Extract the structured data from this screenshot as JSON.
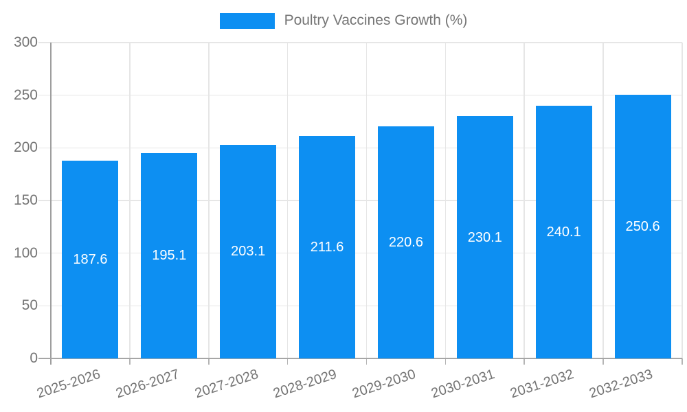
{
  "chart_data": {
    "type": "bar",
    "title": "",
    "xlabel": "",
    "ylabel": "",
    "legend": {
      "label": "Poultry Vaccines Growth (%)",
      "position": "top"
    },
    "categories": [
      "2025-2026",
      "2026-2027",
      "2027-2028",
      "2028-2029",
      "2029-2030",
      "2030-2031",
      "2031-2032",
      "2032-2033"
    ],
    "values": [
      187.6,
      195.1,
      203.1,
      211.6,
      220.6,
      230.1,
      240.1,
      250.6
    ],
    "value_decimals": 1,
    "value_label_position": "inside-center",
    "ylim": [
      0,
      300
    ],
    "ytick_interval": 50,
    "ytick_labels": [
      "0",
      "50",
      "100",
      "150",
      "200",
      "250",
      "300"
    ],
    "grid": true,
    "colors": {
      "bar": "#0d8ff2",
      "axis_text": "#757575",
      "value_label_text": "#ffffff",
      "gridline": "#e6e6e6",
      "y_axis_line": "#9e9e9e",
      "x_axis_line": "#a6a6a6",
      "tick": "#b5b5b5",
      "background": "#ffffff"
    }
  }
}
